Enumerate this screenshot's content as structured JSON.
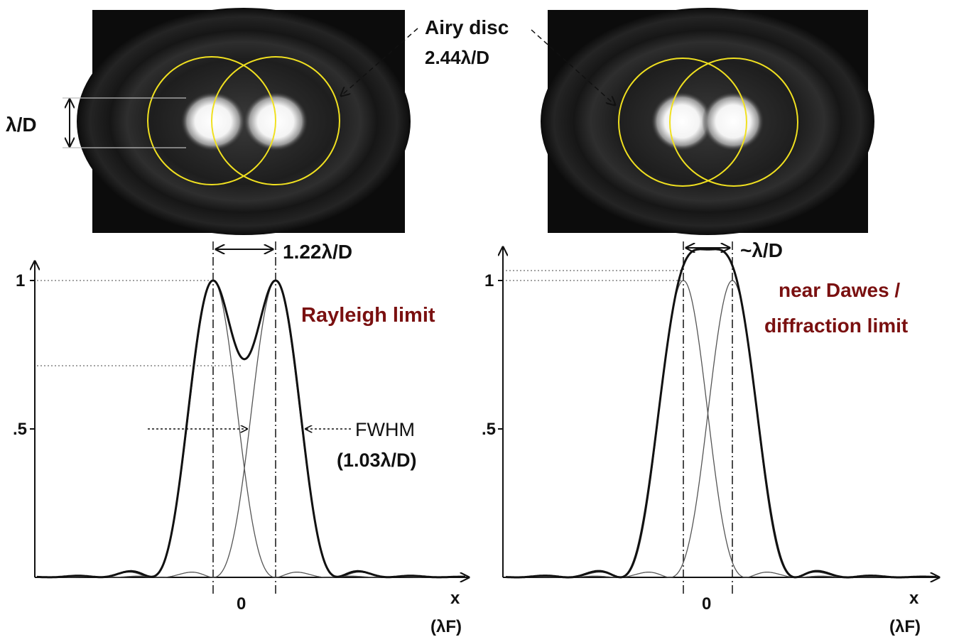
{
  "annotations": {
    "airy_disc_title": "Airy disc",
    "airy_disc_size": "2.44λ/D",
    "lambda_over_d": "λ/D",
    "rayleigh_separation": "1.22λ/D",
    "dawes_separation": "~λ/D",
    "rayleigh_label": "Rayleigh limit",
    "dawes_label_line1": "near Dawes /",
    "dawes_label_line2": "diffraction limit",
    "fwhm_label": "FWHM",
    "fwhm_value": "(1.03λ/D)"
  },
  "plots": [
    {
      "id": "rayleigh",
      "y_ticks": [
        "1",
        ".5"
      ],
      "x_tick": "0",
      "x_axis_label": "x",
      "x_axis_unit": "(λF)"
    },
    {
      "id": "dawes",
      "y_ticks": [
        "1",
        ".5"
      ],
      "x_tick": "0",
      "x_axis_label": "x",
      "x_axis_unit": "(λF)"
    }
  ],
  "colors": {
    "circle": "#f0e020",
    "annotation_red": "#7a1010"
  }
}
